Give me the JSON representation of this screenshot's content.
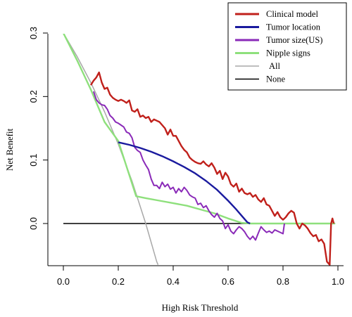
{
  "chart_data": {
    "type": "line",
    "title": "",
    "xlabel": "High Risk Threshold",
    "ylabel": "Net Benefit",
    "xlim": [
      0.0,
      1.0
    ],
    "ylim": [
      -0.065,
      0.31
    ],
    "x_ticks": [
      "0.0",
      "0.2",
      "0.4",
      "0.6",
      "0.8",
      "1.0"
    ],
    "y_ticks": [
      "0.0",
      "0.1",
      "0.2",
      "0.3"
    ],
    "x_tick_values": [
      0.0,
      0.2,
      0.4,
      0.6,
      0.8,
      1.0
    ],
    "y_tick_values": [
      0.0,
      0.1,
      0.2,
      0.3
    ],
    "grid": false,
    "legend_position": "top-right",
    "series": [
      {
        "name": "Clinical model",
        "color": "#c0201b",
        "points": [
          [
            0.1,
            0.218
          ],
          [
            0.11,
            0.225
          ],
          [
            0.12,
            0.23
          ],
          [
            0.13,
            0.238
          ],
          [
            0.14,
            0.222
          ],
          [
            0.15,
            0.212
          ],
          [
            0.16,
            0.214
          ],
          [
            0.17,
            0.203
          ],
          [
            0.18,
            0.198
          ],
          [
            0.19,
            0.195
          ],
          [
            0.2,
            0.193
          ],
          [
            0.21,
            0.195
          ],
          [
            0.22,
            0.193
          ],
          [
            0.23,
            0.19
          ],
          [
            0.24,
            0.194
          ],
          [
            0.25,
            0.178
          ],
          [
            0.26,
            0.176
          ],
          [
            0.27,
            0.18
          ],
          [
            0.28,
            0.168
          ],
          [
            0.29,
            0.17
          ],
          [
            0.3,
            0.166
          ],
          [
            0.31,
            0.168
          ],
          [
            0.32,
            0.16
          ],
          [
            0.33,
            0.164
          ],
          [
            0.34,
            0.162
          ],
          [
            0.35,
            0.16
          ],
          [
            0.36,
            0.155
          ],
          [
            0.37,
            0.15
          ],
          [
            0.38,
            0.14
          ],
          [
            0.39,
            0.148
          ],
          [
            0.4,
            0.138
          ],
          [
            0.41,
            0.138
          ],
          [
            0.42,
            0.13
          ],
          [
            0.43,
            0.122
          ],
          [
            0.44,
            0.116
          ],
          [
            0.45,
            0.112
          ],
          [
            0.46,
            0.104
          ],
          [
            0.47,
            0.1
          ],
          [
            0.48,
            0.097
          ],
          [
            0.49,
            0.095
          ],
          [
            0.5,
            0.094
          ],
          [
            0.51,
            0.098
          ],
          [
            0.52,
            0.093
          ],
          [
            0.53,
            0.09
          ],
          [
            0.54,
            0.095
          ],
          [
            0.55,
            0.088
          ],
          [
            0.56,
            0.078
          ],
          [
            0.57,
            0.083
          ],
          [
            0.58,
            0.07
          ],
          [
            0.59,
            0.08
          ],
          [
            0.6,
            0.074
          ],
          [
            0.61,
            0.062
          ],
          [
            0.62,
            0.058
          ],
          [
            0.63,
            0.063
          ],
          [
            0.64,
            0.05
          ],
          [
            0.65,
            0.055
          ],
          [
            0.66,
            0.048
          ],
          [
            0.67,
            0.046
          ],
          [
            0.68,
            0.048
          ],
          [
            0.69,
            0.042
          ],
          [
            0.7,
            0.045
          ],
          [
            0.71,
            0.038
          ],
          [
            0.72,
            0.034
          ],
          [
            0.73,
            0.04
          ],
          [
            0.74,
            0.03
          ],
          [
            0.75,
            0.028
          ],
          [
            0.76,
            0.02
          ],
          [
            0.77,
            0.012
          ],
          [
            0.78,
            0.018
          ],
          [
            0.79,
            0.01
          ],
          [
            0.8,
            0.006
          ],
          [
            0.81,
            0.01
          ],
          [
            0.82,
            0.016
          ],
          [
            0.83,
            0.02
          ],
          [
            0.84,
            0.017
          ],
          [
            0.85,
            0.0
          ],
          [
            0.86,
            -0.008
          ],
          [
            0.87,
            0.0
          ],
          [
            0.88,
            -0.003
          ],
          [
            0.89,
            -0.008
          ],
          [
            0.9,
            -0.015
          ],
          [
            0.91,
            -0.02
          ],
          [
            0.92,
            -0.018
          ],
          [
            0.93,
            -0.028
          ],
          [
            0.94,
            -0.025
          ],
          [
            0.95,
            -0.032
          ],
          [
            0.96,
            -0.06
          ],
          [
            0.97,
            -0.065
          ],
          [
            0.975,
            0.0
          ],
          [
            0.98,
            0.008
          ],
          [
            0.985,
            0.0
          ]
        ]
      },
      {
        "name": "Tumor location",
        "color": "#1a1a9e",
        "points": [
          [
            0.2,
            0.128
          ],
          [
            0.24,
            0.124
          ],
          [
            0.28,
            0.119
          ],
          [
            0.32,
            0.113
          ],
          [
            0.36,
            0.106
          ],
          [
            0.4,
            0.098
          ],
          [
            0.44,
            0.089
          ],
          [
            0.48,
            0.079
          ],
          [
            0.52,
            0.067
          ],
          [
            0.56,
            0.053
          ],
          [
            0.6,
            0.036
          ],
          [
            0.63,
            0.022
          ],
          [
            0.65,
            0.012
          ],
          [
            0.67,
            0.002
          ],
          [
            0.68,
            0.0
          ]
        ]
      },
      {
        "name": "Tumor size(US)",
        "color": "#8a2ab8",
        "points": [
          [
            0.11,
            0.208
          ],
          [
            0.12,
            0.195
          ],
          [
            0.13,
            0.19
          ],
          [
            0.14,
            0.187
          ],
          [
            0.15,
            0.186
          ],
          [
            0.16,
            0.18
          ],
          [
            0.17,
            0.17
          ],
          [
            0.18,
            0.166
          ],
          [
            0.19,
            0.16
          ],
          [
            0.2,
            0.158
          ],
          [
            0.21,
            0.155
          ],
          [
            0.22,
            0.152
          ],
          [
            0.23,
            0.144
          ],
          [
            0.24,
            0.142
          ],
          [
            0.25,
            0.135
          ],
          [
            0.26,
            0.12
          ],
          [
            0.27,
            0.115
          ],
          [
            0.28,
            0.112
          ],
          [
            0.29,
            0.1
          ],
          [
            0.3,
            0.092
          ],
          [
            0.31,
            0.085
          ],
          [
            0.32,
            0.07
          ],
          [
            0.33,
            0.06
          ],
          [
            0.34,
            0.06
          ],
          [
            0.35,
            0.055
          ],
          [
            0.36,
            0.065
          ],
          [
            0.37,
            0.058
          ],
          [
            0.38,
            0.062
          ],
          [
            0.39,
            0.054
          ],
          [
            0.4,
            0.057
          ],
          [
            0.41,
            0.048
          ],
          [
            0.42,
            0.055
          ],
          [
            0.43,
            0.05
          ],
          [
            0.44,
            0.057
          ],
          [
            0.45,
            0.052
          ],
          [
            0.46,
            0.045
          ],
          [
            0.47,
            0.042
          ],
          [
            0.48,
            0.04
          ],
          [
            0.49,
            0.03
          ],
          [
            0.5,
            0.032
          ],
          [
            0.51,
            0.025
          ],
          [
            0.52,
            0.028
          ],
          [
            0.53,
            0.02
          ],
          [
            0.54,
            0.014
          ],
          [
            0.55,
            0.01
          ],
          [
            0.56,
            0.016
          ],
          [
            0.57,
            0.008
          ],
          [
            0.58,
            0.004
          ],
          [
            0.59,
            -0.008
          ],
          [
            0.6,
            -0.002
          ],
          [
            0.61,
            -0.012
          ],
          [
            0.62,
            -0.016
          ],
          [
            0.63,
            -0.01
          ],
          [
            0.64,
            -0.005
          ],
          [
            0.65,
            -0.008
          ],
          [
            0.66,
            -0.013
          ],
          [
            0.67,
            -0.02
          ],
          [
            0.68,
            -0.025
          ],
          [
            0.69,
            -0.02
          ],
          [
            0.7,
            -0.026
          ],
          [
            0.71,
            -0.015
          ],
          [
            0.72,
            -0.005
          ],
          [
            0.73,
            -0.01
          ],
          [
            0.74,
            -0.014
          ],
          [
            0.75,
            -0.012
          ],
          [
            0.76,
            -0.015
          ],
          [
            0.77,
            -0.01
          ],
          [
            0.78,
            -0.012
          ],
          [
            0.79,
            -0.014
          ],
          [
            0.8,
            -0.016
          ],
          [
            0.805,
            0.0
          ]
        ]
      },
      {
        "name": "Nipple signs",
        "color": "#8ee07c",
        "points": [
          [
            0.0,
            0.3
          ],
          [
            0.05,
            0.257
          ],
          [
            0.1,
            0.211
          ],
          [
            0.15,
            0.16
          ],
          [
            0.2,
            0.13
          ],
          [
            0.265,
            0.043
          ],
          [
            0.3,
            0.04
          ],
          [
            0.35,
            0.036
          ],
          [
            0.4,
            0.032
          ],
          [
            0.45,
            0.028
          ],
          [
            0.5,
            0.022
          ],
          [
            0.55,
            0.016
          ],
          [
            0.6,
            0.008
          ],
          [
            0.65,
            0.001
          ],
          [
            0.68,
            0.0
          ],
          [
            0.75,
            0.0
          ],
          [
            0.85,
            0.0
          ],
          [
            0.99,
            0.0
          ]
        ]
      },
      {
        "name": "All",
        "color": "#a8a8a8",
        "points": [
          [
            0.0,
            0.3
          ],
          [
            0.05,
            0.263
          ],
          [
            0.1,
            0.222
          ],
          [
            0.15,
            0.176
          ],
          [
            0.2,
            0.125
          ],
          [
            0.25,
            0.067
          ],
          [
            0.3,
            0.0
          ],
          [
            0.34,
            -0.06
          ],
          [
            0.345,
            -0.065
          ]
        ]
      },
      {
        "name": "None",
        "color": "#000000",
        "points": [
          [
            0.0,
            0.0
          ],
          [
            0.99,
            0.0
          ]
        ]
      }
    ]
  }
}
